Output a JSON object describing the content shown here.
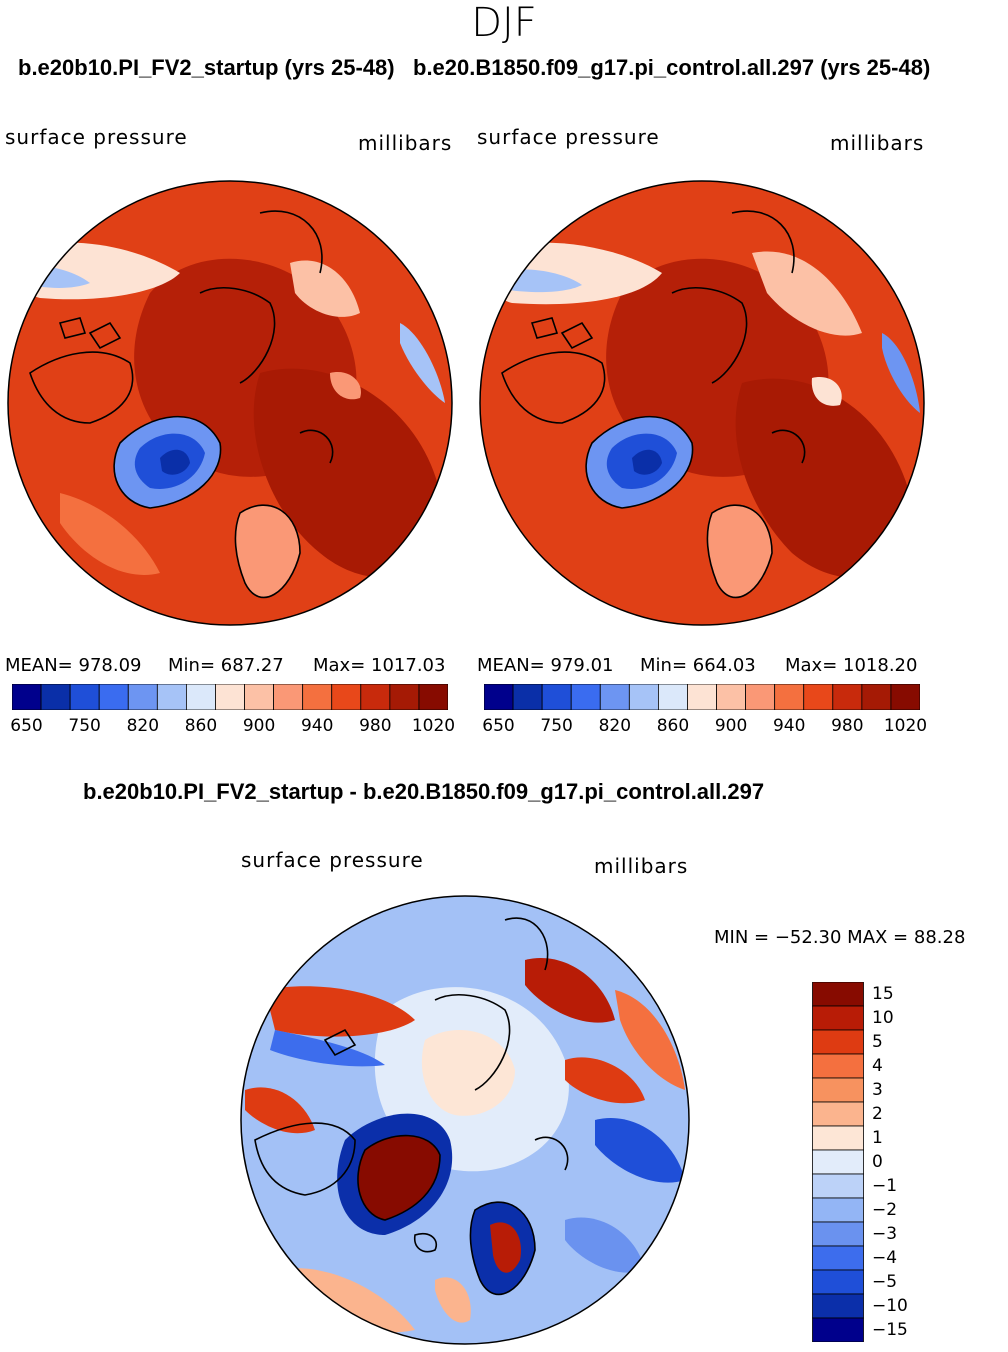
{
  "season": "DJF",
  "header": {
    "case_a_title": "b.e20b10.PI_FV2_startup (yrs 25-48)",
    "case_b_title": "b.e20.B1850.f09_g17.pi_control.all.297 (yrs 25-48)"
  },
  "panels": [
    {
      "variable": "surface pressure",
      "units": "millibars",
      "mean_label": "MEAN= 978.09",
      "min_label": "Min= 687.27",
      "max_label": "Max= 1017.03"
    },
    {
      "variable": "surface pressure",
      "units": "millibars",
      "mean_label": "MEAN= 979.01",
      "min_label": "Min= 664.03",
      "max_label": "Max= 1018.20"
    }
  ],
  "colorbar": {
    "colors": [
      "#00008c",
      "#0a2fa8",
      "#1f4fd8",
      "#3a6cf0",
      "#6d95f2",
      "#a6c3f7",
      "#dbe8fa",
      "#fde3d4",
      "#fcc1a6",
      "#fa9876",
      "#f4703f",
      "#e8481a",
      "#c82a0c",
      "#a51a05",
      "#870b00"
    ],
    "tick_labels": [
      "650",
      "750",
      "820",
      "860",
      "900",
      "940",
      "980",
      "1020"
    ]
  },
  "diff": {
    "title": "b.e20b10.PI_FV2_startup - b.e20.B1850.f09_g17.pi_control.all.297",
    "variable": "surface pressure",
    "units": "millibars",
    "minmax_label": "MIN = −52.30 MAX =   88.28",
    "colors": [
      "#870b00",
      "#b81c06",
      "#de3b12",
      "#f4703f",
      "#f7925f",
      "#fbb48e",
      "#fde6d6",
      "#e2ecfa",
      "#bcd2f8",
      "#93b5f5",
      "#6a92ef",
      "#3d6ded",
      "#1f4fd8",
      "#0b2faa",
      "#00008c"
    ],
    "tick_labels": [
      "15",
      "10",
      "5",
      "4",
      "3",
      "2",
      "1",
      "0",
      "−1",
      "−2",
      "−3",
      "−4",
      "−5",
      "−10",
      "−15"
    ]
  }
}
